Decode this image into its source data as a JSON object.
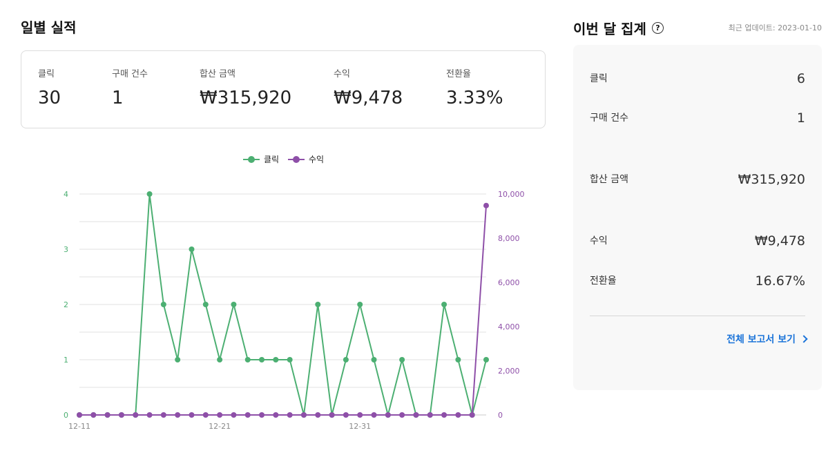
{
  "daily": {
    "title": "일별 실적",
    "metrics": [
      {
        "label": "클릭",
        "value": "30"
      },
      {
        "label": "구매 건수",
        "value": "1"
      },
      {
        "label": "합산 금액",
        "value": "₩315,920"
      },
      {
        "label": "수익",
        "value": "₩9,478"
      },
      {
        "label": "전환율",
        "value": "3.33%"
      }
    ]
  },
  "monthly": {
    "title": "이번 달 집계",
    "help_icon": "question-circle-icon",
    "updated_label": "최근 업데이트:",
    "updated_value": "2023-01-10",
    "rows": [
      {
        "label": "클릭",
        "value": "6"
      },
      {
        "label": "구매 건수",
        "value": "1"
      },
      {
        "label": "합산 금액",
        "value": "₩315,920"
      },
      {
        "label": "수익",
        "value": "₩9,478"
      },
      {
        "label": "전환율",
        "value": "16.67%"
      }
    ],
    "report_link": "전체 보고서 보기"
  },
  "chart_data": {
    "type": "line",
    "x": [
      "12-11",
      "12-12",
      "12-13",
      "12-14",
      "12-15",
      "12-16",
      "12-17",
      "12-18",
      "12-19",
      "12-20",
      "12-21",
      "12-22",
      "12-23",
      "12-24",
      "12-25",
      "12-26",
      "12-27",
      "12-28",
      "12-29",
      "12-30",
      "12-31",
      "01-01",
      "01-02",
      "01-03",
      "01-04",
      "01-05",
      "01-06",
      "01-07",
      "01-08",
      "01-09"
    ],
    "x_tick_labels": [
      "12-11",
      "12-21",
      "12-31"
    ],
    "legend_position": "top-center",
    "grid": true,
    "series": [
      {
        "name": "클릭",
        "axis": "left",
        "color": "#4caf72",
        "values": [
          0,
          0,
          0,
          0,
          0,
          4,
          2,
          1,
          3,
          2,
          1,
          2,
          1,
          1,
          1,
          1,
          0,
          2,
          0,
          1,
          2,
          1,
          0,
          1,
          0,
          0,
          2,
          1,
          0,
          1
        ]
      },
      {
        "name": "수익",
        "axis": "right",
        "color": "#8e4fa8",
        "values": [
          0,
          0,
          0,
          0,
          0,
          0,
          0,
          0,
          0,
          0,
          0,
          0,
          0,
          0,
          0,
          0,
          0,
          0,
          0,
          0,
          0,
          0,
          0,
          0,
          0,
          0,
          0,
          0,
          0,
          9478
        ]
      }
    ],
    "y_left": {
      "ticks": [
        "0",
        "1",
        "2",
        "3",
        "4"
      ],
      "range": [
        0,
        4
      ]
    },
    "y_right": {
      "ticks": [
        "0",
        "2,000",
        "4,000",
        "6,000",
        "8,000",
        "10,000"
      ],
      "range": [
        0,
        10000
      ]
    }
  }
}
